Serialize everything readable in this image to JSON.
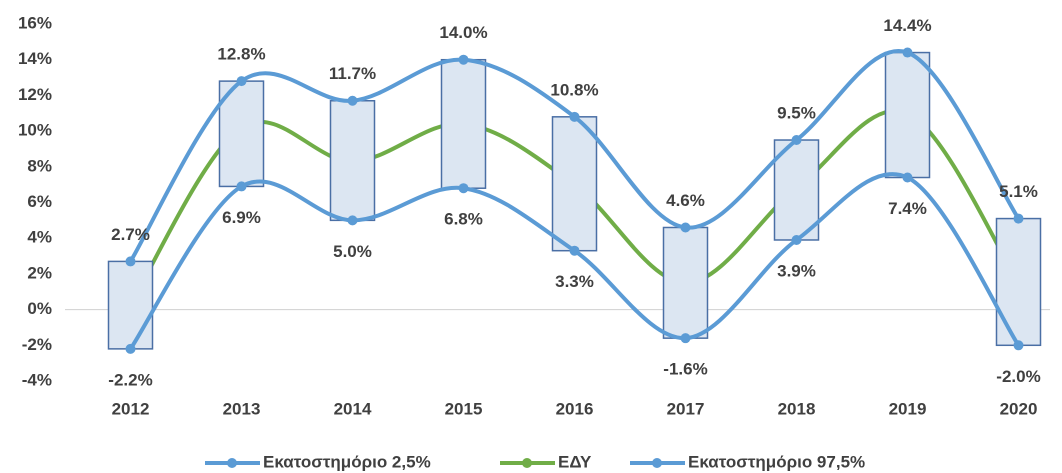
{
  "chart_data": {
    "type": "line",
    "categories": [
      "2012",
      "2013",
      "2014",
      "2015",
      "2016",
      "2017",
      "2018",
      "2019",
      "2020"
    ],
    "series": [
      {
        "name": "Εκατοστημόριο 2,5%",
        "color": "#5b9bd5",
        "values": [
          -2.2,
          6.9,
          5.0,
          6.8,
          3.3,
          -1.6,
          3.9,
          7.4,
          -2.0
        ],
        "value_labels": [
          "-2.2%",
          "6.9%",
          "5.0%",
          "6.8%",
          "3.3%",
          "-1.6%",
          "3.9%",
          "7.4%",
          "-2.0%"
        ]
      },
      {
        "name": "ΕΔΥ",
        "color": "#70ad47",
        "values": [
          0.3,
          10.2,
          8.3,
          10.4,
          7.0,
          1.5,
          6.8,
          11.0,
          1.5
        ]
      },
      {
        "name": "Εκατοστημόριο 97,5%",
        "color": "#5b9bd5",
        "values": [
          2.7,
          12.8,
          11.7,
          14.0,
          10.8,
          4.6,
          9.5,
          14.4,
          5.1
        ],
        "value_labels": [
          "2.7%",
          "12.8%",
          "11.7%",
          "14.0%",
          "10.8%",
          "4.6%",
          "9.5%",
          "14.4%",
          "5.1%"
        ]
      }
    ],
    "ylim": [
      -4,
      16
    ],
    "yticks": [
      {
        "value": -4,
        "label": "-4%"
      },
      {
        "value": -2,
        "label": "-2%"
      },
      {
        "value": 0,
        "label": "0%"
      },
      {
        "value": 2,
        "label": "2%"
      },
      {
        "value": 4,
        "label": "4%"
      },
      {
        "value": 6,
        "label": "6%"
      },
      {
        "value": 8,
        "label": "8%"
      },
      {
        "value": 10,
        "label": "10%"
      },
      {
        "value": 12,
        "label": "12%"
      },
      {
        "value": 14,
        "label": "14%"
      },
      {
        "value": 16,
        "label": "16%"
      }
    ],
    "updown_bars": true,
    "smooth": true,
    "legend": "bottom"
  }
}
